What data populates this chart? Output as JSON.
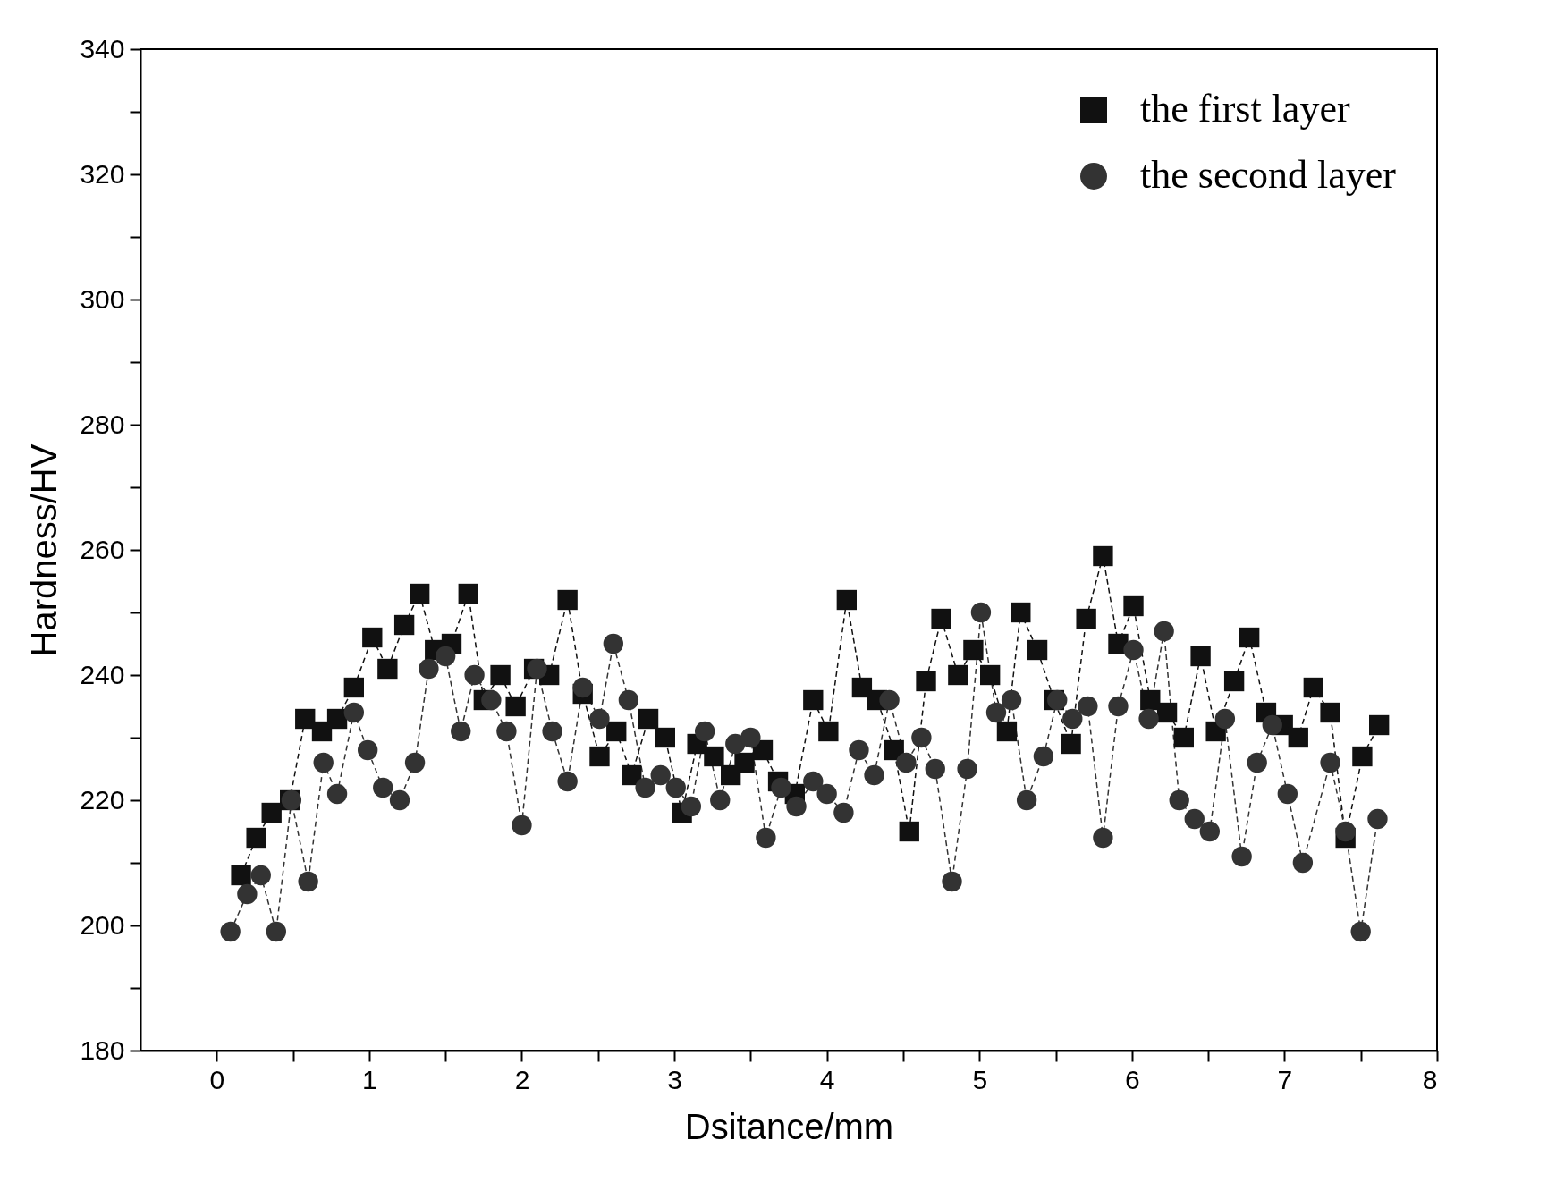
{
  "chart_data": {
    "type": "line",
    "xlabel": "Dsitance/mm",
    "ylabel": "Hardness/HV",
    "xlim": [
      -0.5,
      8
    ],
    "ylim": [
      180,
      340
    ],
    "xticks": [
      0,
      {
        "value": 0.5,
        "label": null
      },
      1,
      {
        "value": 1.5,
        "label": null
      },
      2,
      {
        "value": 2.5,
        "label": null
      },
      3,
      {
        "value": 3.5,
        "label": null
      },
      4,
      {
        "value": 4.5,
        "label": null
      },
      5,
      {
        "value": 5.5,
        "label": null
      },
      6,
      {
        "value": 6.5,
        "label": null
      },
      7,
      {
        "value": 7.5,
        "label": null
      },
      8
    ],
    "yticks": [
      180,
      {
        "value": 190,
        "label": null
      },
      200,
      {
        "value": 210,
        "label": null
      },
      220,
      {
        "value": 230,
        "label": null
      },
      240,
      {
        "value": 250,
        "label": null
      },
      260,
      {
        "value": 270,
        "label": null
      },
      280,
      {
        "value": 290,
        "label": null
      },
      300,
      {
        "value": 310,
        "label": null
      },
      320,
      {
        "value": 330,
        "label": null
      },
      340
    ],
    "grid": false,
    "legend": "top right",
    "line_style": "dashed",
    "series": [
      {
        "name": "the first layer",
        "color": "#111111",
        "marker": "square",
        "x": [
          0.16,
          0.26,
          0.36,
          0.48,
          0.58,
          0.69,
          0.79,
          0.9,
          1.02,
          1.12,
          1.23,
          1.33,
          1.43,
          1.54,
          1.65,
          1.75,
          1.86,
          1.96,
          2.08,
          2.18,
          2.3,
          2.4,
          2.51,
          2.62,
          2.72,
          2.83,
          2.94,
          3.05,
          3.15,
          3.26,
          3.37,
          3.46,
          3.58,
          3.68,
          3.79,
          3.91,
          4.01,
          4.13,
          4.23,
          4.33,
          4.44,
          4.54,
          4.65,
          4.75,
          4.86,
          4.96,
          5.07,
          5.18,
          5.27,
          5.38,
          5.49,
          5.6,
          5.7,
          5.81,
          5.91,
          6.01,
          6.12,
          6.23,
          6.34,
          6.45,
          6.55,
          6.67,
          6.77,
          6.88,
          6.99,
          7.09,
          7.19,
          7.3,
          7.4,
          7.51,
          7.62
        ],
        "values": [
          208,
          214,
          218,
          220,
          233,
          231,
          233,
          238,
          246,
          241,
          248,
          253,
          244,
          245,
          253,
          236,
          240,
          235,
          241,
          240,
          252,
          237,
          227,
          231,
          224,
          233,
          230,
          218,
          229,
          227,
          224,
          226,
          228,
          223,
          221,
          236,
          231,
          252,
          238,
          236,
          228,
          215,
          239,
          249,
          240,
          244,
          240,
          231,
          250,
          244,
          236,
          229,
          249,
          259,
          245,
          251,
          236,
          234,
          230,
          243,
          231,
          239,
          246,
          234,
          232,
          230,
          238,
          234,
          214,
          227,
          232
        ]
      },
      {
        "name": "the second layer",
        "color": "#333333",
        "marker": "circle",
        "x": [
          0.09,
          0.2,
          0.29,
          0.39,
          0.49,
          0.6,
          0.7,
          0.79,
          0.9,
          0.99,
          1.09,
          1.2,
          1.3,
          1.39,
          1.5,
          1.6,
          1.69,
          1.8,
          1.9,
          2.0,
          2.1,
          2.2,
          2.3,
          2.4,
          2.51,
          2.6,
          2.7,
          2.81,
          2.91,
          3.01,
          3.11,
          3.2,
          3.3,
          3.4,
          3.5,
          3.6,
          3.7,
          3.8,
          3.91,
          4.0,
          4.11,
          4.21,
          4.31,
          4.41,
          4.52,
          4.62,
          4.71,
          4.82,
          4.92,
          5.01,
          5.11,
          5.21,
          5.31,
          5.42,
          5.51,
          5.61,
          5.71,
          5.81,
          5.91,
          6.01,
          6.11,
          6.21,
          6.31,
          6.41,
          6.51,
          6.61,
          6.72,
          6.82,
          6.92,
          7.02,
          7.12,
          7.3,
          7.4,
          7.5,
          7.61
        ],
        "values": [
          199,
          205,
          208,
          199,
          220,
          207,
          226,
          221,
          234,
          228,
          222,
          220,
          226,
          241,
          243,
          231,
          240,
          236,
          231,
          216,
          241,
          231,
          223,
          238,
          233,
          245,
          236,
          222,
          224,
          222,
          219,
          231,
          220,
          229,
          230,
          214,
          222,
          219,
          223,
          221,
          218,
          228,
          224,
          236,
          226,
          230,
          225,
          207,
          225,
          250,
          234,
          236,
          220,
          227,
          236,
          233,
          235,
          214,
          235,
          244,
          233,
          247,
          220,
          217,
          215,
          233,
          211,
          226,
          232,
          221,
          210,
          226,
          215,
          199,
          217
        ]
      }
    ]
  }
}
